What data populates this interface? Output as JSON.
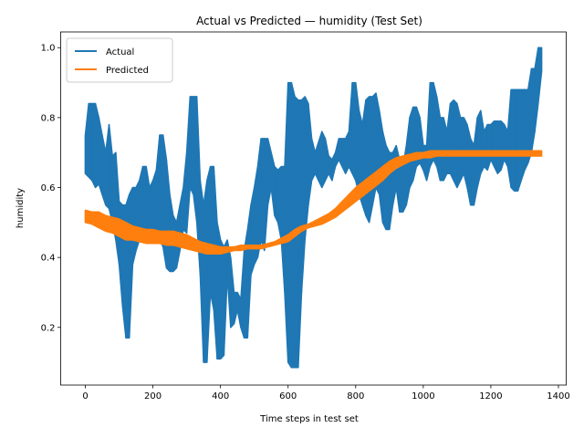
{
  "chart_data": {
    "type": "line",
    "title": "Actual vs Predicted — humidity (Test Set)",
    "xlabel": "Time steps in test set",
    "ylabel": "humidity",
    "xlim": [
      -73,
      1423
    ],
    "ylim": [
      0.035,
      1.045
    ],
    "xticks": [
      0,
      200,
      400,
      600,
      800,
      1000,
      1200,
      1400
    ],
    "yticks": [
      0.2,
      0.4,
      0.6,
      0.8,
      1.0
    ],
    "xtick_labels": [
      "0",
      "200",
      "400",
      "600",
      "800",
      "1000",
      "1200",
      "1400"
    ],
    "ytick_labels": [
      "0.2",
      "0.4",
      "0.6",
      "0.8",
      "1.0"
    ],
    "grid": false,
    "legend_position": "top-left",
    "colors": {
      "actual": "#1f77b4",
      "predicted": "#ff7f0e"
    },
    "series": [
      {
        "name": "Actual",
        "band_x": [
          0,
          10,
          20,
          30,
          40,
          50,
          60,
          70,
          80,
          90,
          100,
          110,
          120,
          130,
          140,
          150,
          160,
          170,
          180,
          190,
          200,
          210,
          220,
          230,
          240,
          250,
          260,
          270,
          280,
          290,
          300,
          310,
          320,
          330,
          340,
          350,
          360,
          370,
          380,
          390,
          400,
          410,
          420,
          430,
          440,
          450,
          460,
          470,
          480,
          490,
          500,
          510,
          520,
          530,
          540,
          550,
          560,
          570,
          580,
          590,
          600,
          610,
          620,
          630,
          640,
          650,
          660,
          670,
          680,
          690,
          700,
          710,
          720,
          730,
          740,
          750,
          760,
          770,
          780,
          790,
          800,
          810,
          820,
          830,
          840,
          850,
          860,
          870,
          880,
          890,
          900,
          910,
          920,
          930,
          940,
          950,
          960,
          970,
          980,
          990,
          1000,
          1010,
          1020,
          1030,
          1040,
          1050,
          1060,
          1070,
          1080,
          1090,
          1100,
          1110,
          1120,
          1130,
          1140,
          1150,
          1160,
          1170,
          1180,
          1190,
          1200,
          1210,
          1220,
          1230,
          1240,
          1250,
          1260,
          1270,
          1280,
          1290,
          1300,
          1310,
          1320,
          1330,
          1340,
          1350
        ],
        "band_low": [
          0.64,
          0.63,
          0.62,
          0.6,
          0.61,
          0.58,
          0.55,
          0.54,
          0.5,
          0.45,
          0.38,
          0.26,
          0.17,
          0.17,
          0.38,
          0.42,
          0.45,
          0.46,
          0.45,
          0.44,
          0.46,
          0.45,
          0.45,
          0.43,
          0.37,
          0.36,
          0.36,
          0.37,
          0.42,
          0.48,
          0.47,
          0.6,
          0.58,
          0.5,
          0.35,
          0.1,
          0.1,
          0.3,
          0.25,
          0.11,
          0.11,
          0.12,
          0.35,
          0.2,
          0.21,
          0.25,
          0.2,
          0.17,
          0.17,
          0.35,
          0.38,
          0.4,
          0.45,
          0.42,
          0.55,
          0.6,
          0.52,
          0.5,
          0.45,
          0.3,
          0.1,
          0.085,
          0.085,
          0.085,
          0.3,
          0.45,
          0.55,
          0.62,
          0.64,
          0.62,
          0.6,
          0.62,
          0.64,
          0.62,
          0.66,
          0.68,
          0.66,
          0.64,
          0.66,
          0.64,
          0.62,
          0.58,
          0.55,
          0.52,
          0.5,
          0.55,
          0.6,
          0.58,
          0.5,
          0.48,
          0.48,
          0.55,
          0.6,
          0.53,
          0.53,
          0.55,
          0.6,
          0.62,
          0.66,
          0.67,
          0.65,
          0.62,
          0.66,
          0.68,
          0.66,
          0.62,
          0.62,
          0.64,
          0.64,
          0.62,
          0.6,
          0.62,
          0.64,
          0.6,
          0.55,
          0.55,
          0.6,
          0.64,
          0.66,
          0.65,
          0.68,
          0.66,
          0.64,
          0.65,
          0.68,
          0.66,
          0.6,
          0.59,
          0.59,
          0.62,
          0.65,
          0.67,
          0.7,
          0.76,
          0.84,
          0.93
        ],
        "band_high": [
          0.75,
          0.84,
          0.84,
          0.84,
          0.8,
          0.75,
          0.7,
          0.78,
          0.69,
          0.7,
          0.56,
          0.55,
          0.55,
          0.58,
          0.6,
          0.6,
          0.62,
          0.66,
          0.66,
          0.6,
          0.62,
          0.65,
          0.75,
          0.75,
          0.68,
          0.58,
          0.52,
          0.5,
          0.55,
          0.6,
          0.7,
          0.86,
          0.86,
          0.86,
          0.62,
          0.55,
          0.62,
          0.66,
          0.66,
          0.5,
          0.45,
          0.43,
          0.45,
          0.4,
          0.3,
          0.3,
          0.28,
          0.42,
          0.48,
          0.55,
          0.6,
          0.66,
          0.74,
          0.74,
          0.74,
          0.7,
          0.66,
          0.65,
          0.66,
          0.66,
          0.9,
          0.9,
          0.86,
          0.85,
          0.85,
          0.86,
          0.84,
          0.74,
          0.7,
          0.73,
          0.76,
          0.74,
          0.69,
          0.68,
          0.7,
          0.74,
          0.74,
          0.74,
          0.76,
          0.9,
          0.9,
          0.82,
          0.78,
          0.85,
          0.86,
          0.86,
          0.87,
          0.82,
          0.76,
          0.72,
          0.7,
          0.7,
          0.72,
          0.68,
          0.66,
          0.72,
          0.8,
          0.83,
          0.83,
          0.8,
          0.72,
          0.72,
          0.9,
          0.9,
          0.86,
          0.8,
          0.8,
          0.76,
          0.84,
          0.85,
          0.84,
          0.8,
          0.8,
          0.78,
          0.74,
          0.72,
          0.8,
          0.82,
          0.76,
          0.78,
          0.78,
          0.79,
          0.79,
          0.79,
          0.78,
          0.76,
          0.88,
          0.88,
          0.88,
          0.88,
          0.88,
          0.88,
          0.94,
          0.94,
          1.0,
          1.0
        ]
      },
      {
        "name": "Predicted",
        "band_x": [
          0,
          20,
          40,
          60,
          80,
          100,
          120,
          140,
          160,
          180,
          200,
          220,
          240,
          260,
          280,
          300,
          320,
          340,
          360,
          380,
          400,
          420,
          440,
          460,
          480,
          500,
          520,
          540,
          560,
          580,
          600,
          620,
          640,
          660,
          680,
          700,
          720,
          740,
          760,
          780,
          800,
          820,
          840,
          860,
          880,
          900,
          920,
          940,
          960,
          980,
          1000,
          1020,
          1040,
          1060,
          1080,
          1100,
          1120,
          1140,
          1160,
          1180,
          1200,
          1220,
          1240,
          1260,
          1280,
          1300,
          1320,
          1340,
          1350
        ],
        "band_low": [
          0.5,
          0.495,
          0.485,
          0.475,
          0.47,
          0.46,
          0.45,
          0.45,
          0.445,
          0.44,
          0.44,
          0.44,
          0.435,
          0.435,
          0.43,
          0.425,
          0.42,
          0.415,
          0.41,
          0.41,
          0.41,
          0.415,
          0.42,
          0.42,
          0.425,
          0.425,
          0.425,
          0.43,
          0.435,
          0.44,
          0.445,
          0.46,
          0.475,
          0.485,
          0.49,
          0.495,
          0.505,
          0.515,
          0.53,
          0.545,
          0.56,
          0.575,
          0.59,
          0.605,
          0.62,
          0.64,
          0.655,
          0.665,
          0.675,
          0.68,
          0.685,
          0.685,
          0.69,
          0.69,
          0.69,
          0.69,
          0.69,
          0.69,
          0.69,
          0.69,
          0.69,
          0.69,
          0.69,
          0.69,
          0.69,
          0.69,
          0.69,
          0.69,
          0.69
        ],
        "band_high": [
          0.535,
          0.53,
          0.53,
          0.52,
          0.515,
          0.51,
          0.5,
          0.49,
          0.485,
          0.48,
          0.48,
          0.475,
          0.475,
          0.475,
          0.47,
          0.465,
          0.455,
          0.445,
          0.44,
          0.435,
          0.43,
          0.43,
          0.43,
          0.435,
          0.435,
          0.435,
          0.435,
          0.44,
          0.445,
          0.455,
          0.465,
          0.48,
          0.49,
          0.495,
          0.505,
          0.515,
          0.525,
          0.54,
          0.56,
          0.58,
          0.6,
          0.615,
          0.63,
          0.645,
          0.66,
          0.675,
          0.685,
          0.69,
          0.695,
          0.7,
          0.7,
          0.705,
          0.705,
          0.705,
          0.705,
          0.705,
          0.705,
          0.705,
          0.705,
          0.705,
          0.705,
          0.705,
          0.705,
          0.705,
          0.705,
          0.705,
          0.705,
          0.705,
          0.705
        ]
      }
    ]
  }
}
